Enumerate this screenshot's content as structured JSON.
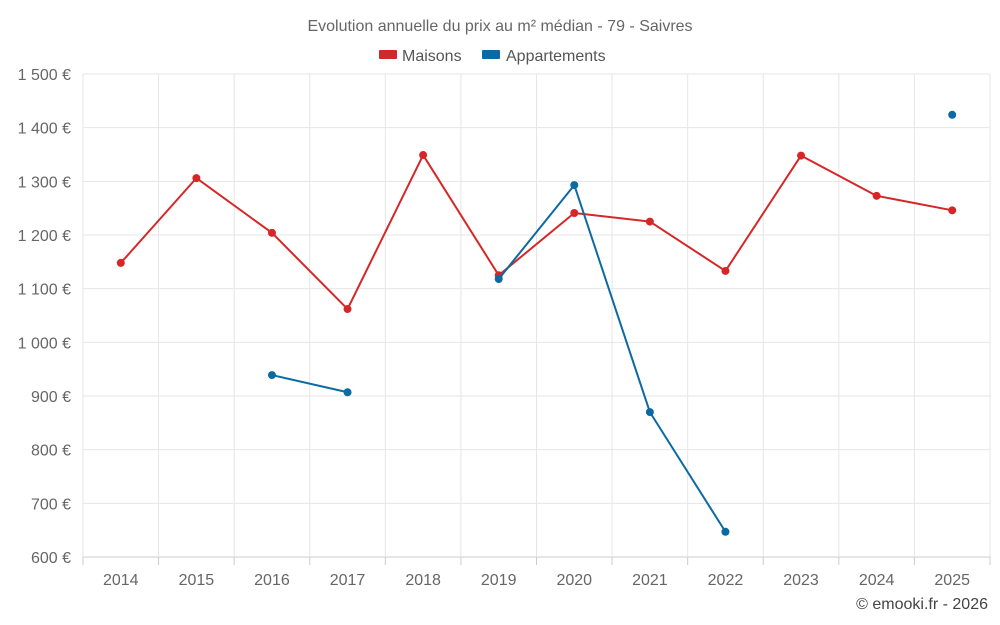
{
  "chart_data": {
    "type": "line",
    "title": "Evolution annuelle du prix au m² médian - 79 - Saivres",
    "categories": [
      "2014",
      "2015",
      "2016",
      "2017",
      "2018",
      "2019",
      "2020",
      "2021",
      "2022",
      "2023",
      "2024",
      "2025"
    ],
    "ylim": [
      600,
      1500
    ],
    "yticks": [
      600,
      700,
      800,
      900,
      1000,
      1100,
      1200,
      1300,
      1400,
      1500
    ],
    "ytick_labels": [
      "600 €",
      "700 €",
      "800 €",
      "900 €",
      "1 000 €",
      "1 100 €",
      "1 200 €",
      "1 300 €",
      "1 400 €",
      "1 500 €"
    ],
    "grid": true,
    "legend_position": "top-center",
    "series": [
      {
        "name": "Maisons",
        "color": "#d62728",
        "values": [
          1148,
          1306,
          1204,
          1062,
          1349,
          1125,
          1241,
          1225,
          1133,
          1348,
          1273,
          1246
        ]
      },
      {
        "name": "Appartements",
        "color": "#0b6aa2",
        "values": [
          null,
          null,
          939,
          907,
          null,
          1118,
          1293,
          870,
          647,
          null,
          null,
          1424
        ]
      }
    ],
    "credit": "© emooki.fr - 2026"
  }
}
